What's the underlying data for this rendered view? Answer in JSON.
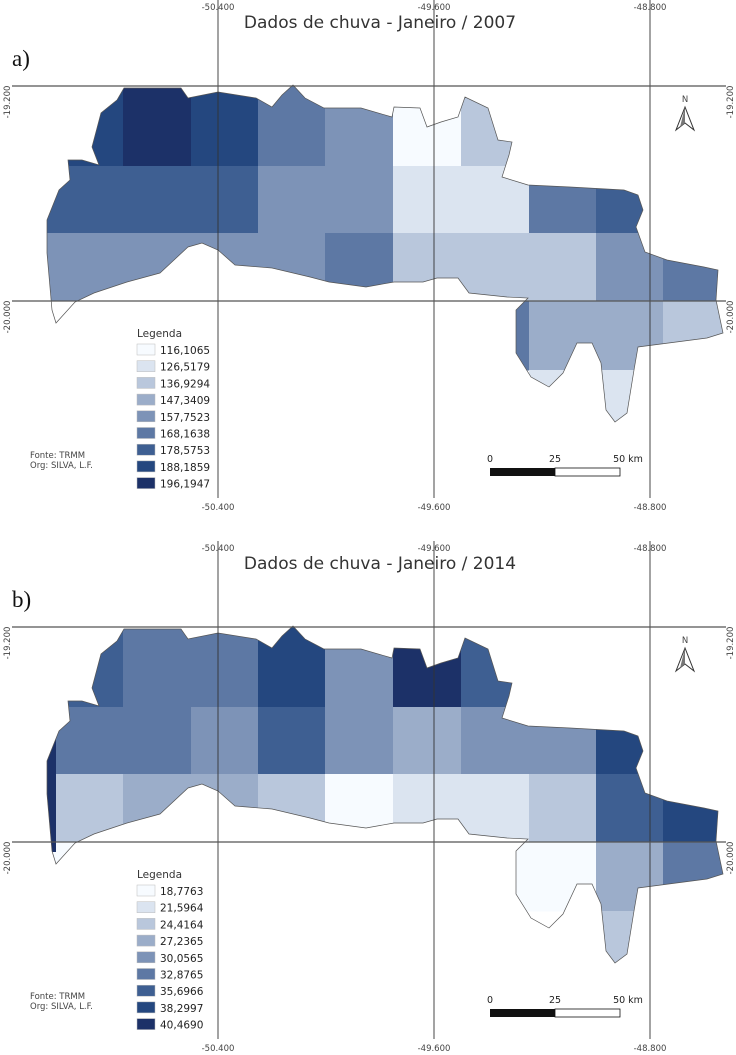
{
  "colors": [
    "#f7fbff",
    "#dbe4f0",
    "#b9c7dc",
    "#9badc9",
    "#7d93b7",
    "#5d78a4",
    "#3e5f92",
    "#24477f",
    "#1c3168"
  ],
  "panels": [
    {
      "panel_label": "a)",
      "title": "Dados de chuva - Janeiro / 2007",
      "legend_title": "Legenda",
      "legend": [
        "116,1065",
        "126,5179",
        "136,9294",
        "147,3409",
        "157,7523",
        "168,1638",
        "178,5753",
        "188,1859",
        "196,1947"
      ],
      "source": "Fonte: TRMM",
      "org": "Org: SILVA, L.F.",
      "lon_labels": [
        "-50.400",
        "-49.600",
        "-48.800"
      ],
      "lat_labels": [
        "-19.200",
        "-20.000"
      ],
      "north": "N",
      "scale_labels": [
        "0",
        "25",
        "50 km"
      ],
      "cell_classes": [
        [
          7,
          8,
          7,
          5,
          4,
          0,
          2,
          null,
          null,
          null
        ],
        [
          6,
          6,
          6,
          4,
          4,
          1,
          1,
          5,
          6,
          null
        ],
        [
          4,
          4,
          4,
          4,
          5,
          2,
          2,
          2,
          4,
          5
        ],
        [
          null,
          null,
          null,
          null,
          null,
          null,
          5,
          3,
          3,
          2
        ],
        [
          null,
          null,
          null,
          null,
          null,
          null,
          null,
          1,
          1,
          null
        ]
      ],
      "edge_class": null
    },
    {
      "panel_label": "b)",
      "title": "Dados de chuva - Janeiro / 2014",
      "legend_title": "Legenda",
      "legend": [
        "18,7763",
        "21,5964",
        "24,4164",
        "27,2365",
        "30,0565",
        "32,8765",
        "35,6966",
        "38,2997",
        "40,4690"
      ],
      "source": "Fonte: TRMM",
      "org": "Org: SILVA, L.F.",
      "lon_labels": [
        "-50.400",
        "-49.600",
        "-48.800"
      ],
      "lat_labels": [
        "-19.200",
        "-20.000"
      ],
      "north": "N",
      "scale_labels": [
        "0",
        "25",
        "50 km"
      ],
      "cell_classes": [
        [
          6,
          5,
          5,
          7,
          4,
          8,
          6,
          null,
          null,
          null
        ],
        [
          5,
          5,
          4,
          6,
          4,
          3,
          4,
          4,
          7,
          null
        ],
        [
          2,
          3,
          3,
          2,
          0,
          1,
          1,
          2,
          6,
          7
        ],
        [
          0,
          null,
          null,
          null,
          null,
          null,
          0,
          0,
          3,
          5
        ],
        [
          null,
          null,
          null,
          null,
          null,
          null,
          null,
          null,
          2,
          null
        ]
      ],
      "edge_class": 8
    }
  ]
}
